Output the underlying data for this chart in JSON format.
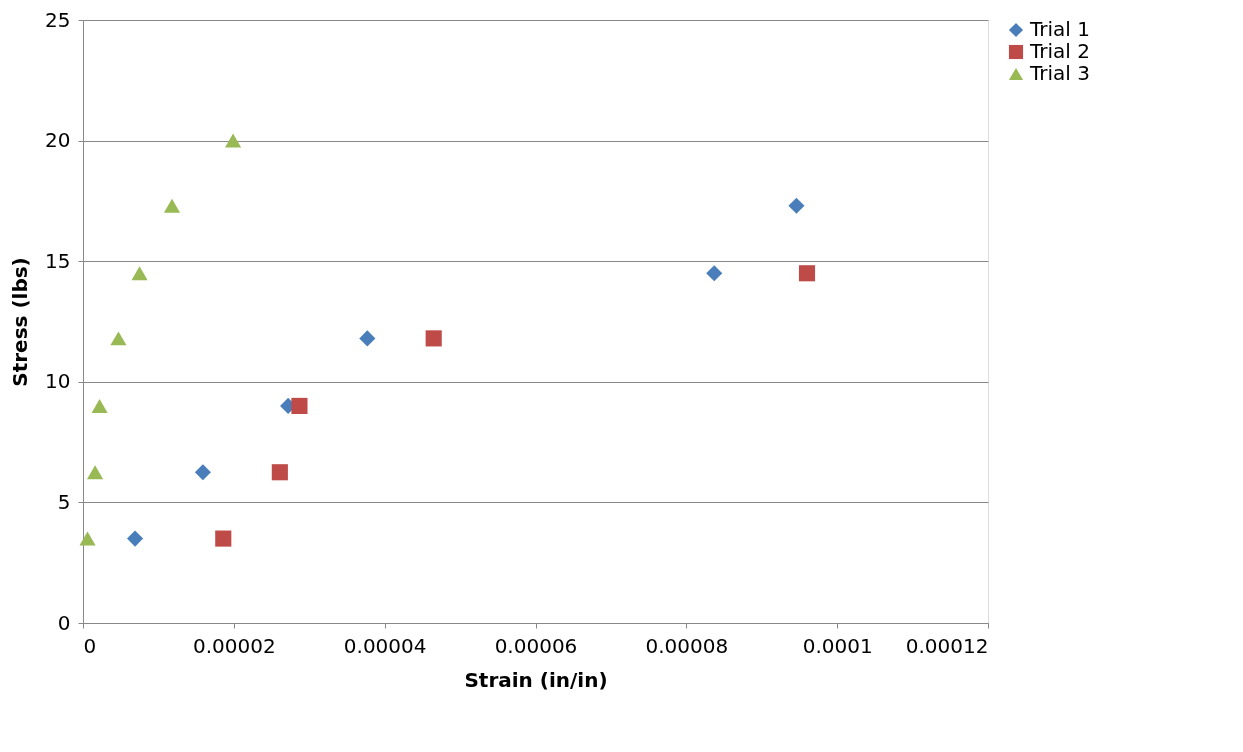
{
  "chart_data": {
    "type": "scatter",
    "xlabel": "Strain (in/in)",
    "ylabel": "Stress (lbs)",
    "xlim": [
      0,
      0.00012
    ],
    "xticks": [
      0,
      {
        "value": 2e-05,
        "label": "0.00002"
      },
      {
        "value": 4e-05,
        "label": "0.00004"
      },
      {
        "value": 6e-05,
        "label": "0.00006"
      },
      {
        "value": 8e-05,
        "label": "0.00008"
      },
      0.0001,
      0.00012
    ],
    "ylim": [
      0,
      25
    ],
    "yticks": [
      0,
      5,
      10,
      15,
      20,
      25
    ],
    "grid": "y",
    "legend": "right",
    "series": [
      {
        "name": "Trial 1",
        "color": "#4a7ebb",
        "marker": "diamond",
        "x": [
          6.9e-06,
          1.59e-05,
          2.72e-05,
          3.77e-05,
          8.37e-05,
          9.46e-05
        ],
        "values": [
          3.5,
          6.25,
          9.0,
          11.8,
          14.5,
          17.3
        ]
      },
      {
        "name": "Trial 2",
        "color": "#be4b48",
        "marker": "square",
        "x": [
          1.86e-05,
          2.61e-05,
          2.87e-05,
          4.65e-05,
          9.6e-05
        ],
        "values": [
          3.5,
          6.25,
          9.0,
          11.8,
          14.5
        ]
      },
      {
        "name": "Trial 3",
        "color": "#98b954",
        "marker": "triangle",
        "x": [
          6e-07,
          1.6e-06,
          2.2e-06,
          4.7e-06,
          7.5e-06,
          1.18e-05,
          1.99e-05
        ],
        "values": [
          3.5,
          6.25,
          9.0,
          11.8,
          14.5,
          17.3,
          20.0
        ]
      }
    ]
  }
}
